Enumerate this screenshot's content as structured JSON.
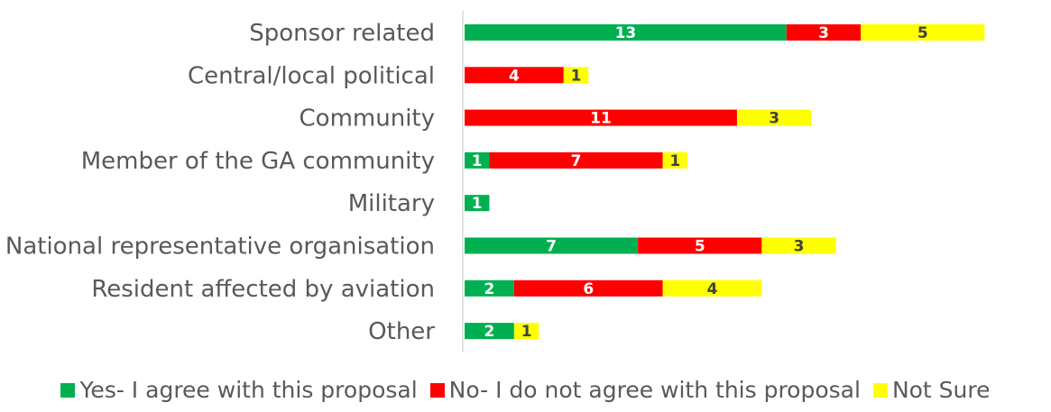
{
  "chart_data": {
    "type": "bar",
    "orientation": "horizontal",
    "stacked": true,
    "categories": [
      "Sponsor related",
      "Central/local political",
      "Community",
      "Member of the GA community",
      "Military",
      "National representative organisation",
      "Resident affected by aviation",
      "Other"
    ],
    "series": [
      {
        "name": "Yes- I agree with this proposal",
        "color": "#00b050",
        "label_color": "#ffffff",
        "values": [
          13,
          0,
          0,
          1,
          1,
          7,
          2,
          2
        ]
      },
      {
        "name": "No- I do not agree with this proposal",
        "color": "#ff0000",
        "label_color": "#ffffff",
        "values": [
          3,
          4,
          11,
          7,
          0,
          5,
          6,
          0
        ]
      },
      {
        "name": "Not Sure",
        "color": "#ffff00",
        "label_color": "#404040",
        "values": [
          5,
          1,
          3,
          1,
          0,
          3,
          4,
          1
        ]
      }
    ],
    "xlim": [
      0,
      21
    ],
    "grid": false,
    "legend_position": "bottom"
  }
}
